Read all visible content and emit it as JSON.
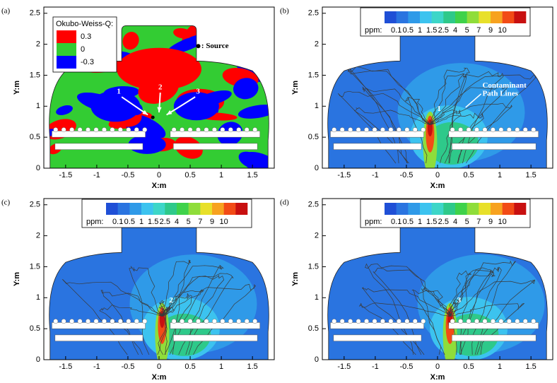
{
  "chart_data": [
    {
      "type": "okubo-weiss",
      "panel_label": "(a)",
      "xlabel": "X:m",
      "ylabel": "Y:m",
      "xlim": [
        -1.85,
        1.85
      ],
      "ylim": [
        0,
        2.6
      ],
      "xticks": [
        -1.5,
        -1,
        -0.5,
        0,
        0.5,
        1,
        1.5
      ],
      "yticks": [
        0,
        0.5,
        1,
        1.5,
        2,
        2.5
      ],
      "legend": {
        "title": "Okubo-Weiss-Q:",
        "levels": [
          0.3,
          0,
          -0.3
        ],
        "colors": [
          "#ff0000",
          "#33cc33",
          "#0000ff"
        ]
      },
      "source_label": ": Source",
      "annotations": [
        "1",
        "2",
        "3"
      ]
    },
    {
      "type": "concentration",
      "panel_label": "(b)",
      "xlabel": "X:m",
      "ylabel": "Y:m",
      "xlim": [
        -1.85,
        1.85
      ],
      "ylim": [
        0,
        2.6
      ],
      "xticks": [
        -1.5,
        -1,
        -0.5,
        0,
        0.5,
        1,
        1.5
      ],
      "yticks": [
        0,
        0.5,
        1,
        1.5,
        2,
        2.5
      ],
      "colorbar": {
        "title": "ppm:",
        "levels": [
          0.1,
          0.5,
          1,
          1.5,
          2.5,
          4,
          5,
          7,
          9,
          10
        ],
        "colors": [
          "#1f4fd6",
          "#2a74e0",
          "#2f9ae8",
          "#3cc3ef",
          "#3dd6c8",
          "#2ec98a",
          "#3fd24a",
          "#8fdd3a",
          "#e8e02a",
          "#f7a21f",
          "#f24b16",
          "#c81010"
        ]
      },
      "annotations": [
        "1",
        "Contaminant",
        "Path Lines"
      ]
    },
    {
      "type": "concentration",
      "panel_label": "(c)",
      "xlabel": "X:m",
      "ylabel": "Y:m",
      "xlim": [
        -1.85,
        1.85
      ],
      "ylim": [
        0,
        2.6
      ],
      "xticks": [
        -1.5,
        -1,
        -0.5,
        0,
        0.5,
        1,
        1.5
      ],
      "yticks": [
        0,
        0.5,
        1,
        1.5,
        2,
        2.5
      ],
      "colorbar": {
        "title": "ppm:",
        "levels": [
          0.1,
          0.5,
          1,
          1.5,
          2.5,
          4,
          5,
          7,
          9,
          10
        ],
        "colors": [
          "#1f4fd6",
          "#2a74e0",
          "#2f9ae8",
          "#3cc3ef",
          "#3dd6c8",
          "#2ec98a",
          "#3fd24a",
          "#8fdd3a",
          "#e8e02a",
          "#f7a21f",
          "#f24b16",
          "#c81010"
        ]
      },
      "annotations": [
        "2"
      ]
    },
    {
      "type": "concentration",
      "panel_label": "(d)",
      "xlabel": "X:m",
      "ylabel": "Y:m",
      "xlim": [
        -1.85,
        1.85
      ],
      "ylim": [
        0,
        2.6
      ],
      "xticks": [
        -1.5,
        -1,
        -0.5,
        0,
        0.5,
        1,
        1.5
      ],
      "yticks": [
        0,
        0.5,
        1,
        1.5,
        2,
        2.5
      ],
      "colorbar": {
        "title": "ppm:",
        "levels": [
          0.1,
          0.5,
          1,
          1.5,
          2.5,
          4,
          5,
          7,
          9,
          10
        ],
        "colors": [
          "#1f4fd6",
          "#2a74e0",
          "#2f9ae8",
          "#3cc3ef",
          "#3dd6c8",
          "#2ec98a",
          "#3fd24a",
          "#8fdd3a",
          "#e8e02a",
          "#f7a21f",
          "#f24b16",
          "#c81010"
        ]
      },
      "annotations": [
        "3"
      ]
    }
  ]
}
